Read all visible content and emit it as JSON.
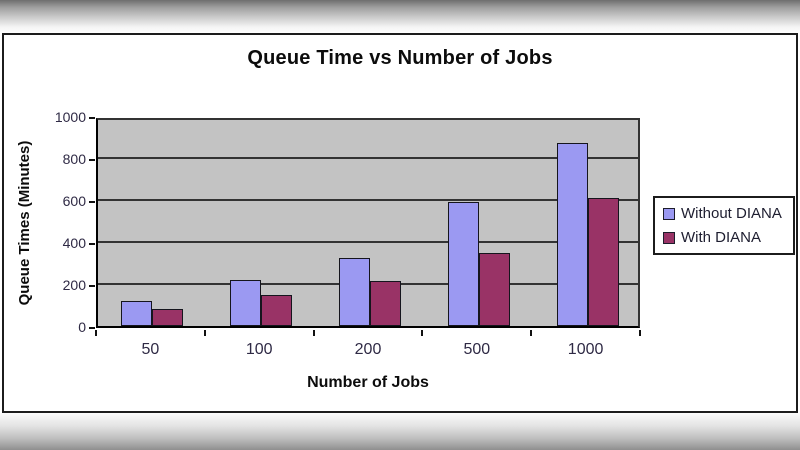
{
  "chart_data": {
    "type": "bar",
    "title": "Queue Time vs Number of Jobs",
    "xlabel": "Number of Jobs",
    "ylabel": "Queue Times (Minutes)",
    "categories": [
      "50",
      "100",
      "200",
      "500",
      "1000"
    ],
    "series": [
      {
        "name": "Without DIANA",
        "color": "#9b99f2",
        "values": [
          120,
          220,
          325,
          590,
          870
        ]
      },
      {
        "name": "With DIANA",
        "color": "#993366",
        "values": [
          80,
          150,
          215,
          350,
          610
        ]
      }
    ],
    "ylim": [
      0,
      1000
    ],
    "ytick_step": 200,
    "grid": true,
    "legend_position": "right",
    "plot_bg": "#c3c3c3",
    "gridline_color": "#333333"
  }
}
